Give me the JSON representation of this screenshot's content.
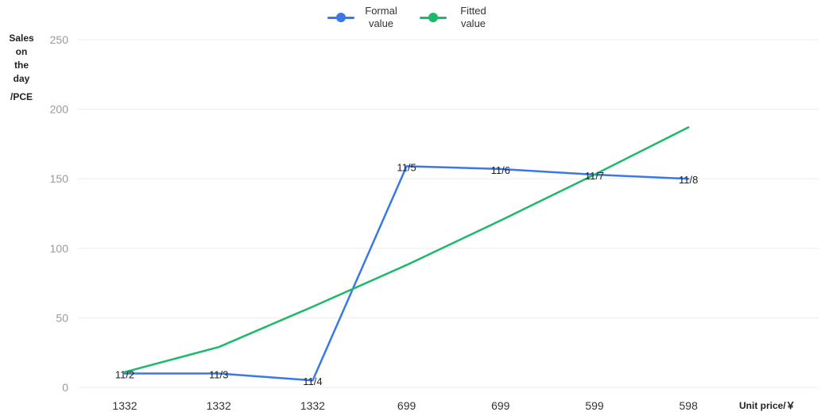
{
  "chart_data": {
    "type": "line",
    "categories": [
      "1332",
      "1332",
      "1332",
      "699",
      "699",
      "599",
      "598"
    ],
    "point_labels": [
      "11/2",
      "11/3",
      "11/4",
      "11/5",
      "11/6",
      "11/7",
      "11/8"
    ],
    "series": [
      {
        "name_line1": "Formal",
        "name_line2": "value",
        "color": "#3b78e7",
        "values": [
          10,
          10,
          5,
          159,
          157,
          153,
          150
        ]
      },
      {
        "name_line1": "Fitted",
        "name_line2": "value",
        "color": "#1db96b",
        "values": [
          11,
          29,
          58,
          88,
          120,
          153,
          187
        ]
      }
    ],
    "ylabel_lines": [
      "Sales",
      "on",
      "the",
      "day"
    ],
    "ylabel_unit": "/PCE",
    "xlabel": "Unit price/￥",
    "ylim": [
      0,
      250
    ],
    "yticks": [
      0,
      50,
      100,
      150,
      200,
      250
    ],
    "grid": "horizontal",
    "legend_position": "top-center"
  }
}
